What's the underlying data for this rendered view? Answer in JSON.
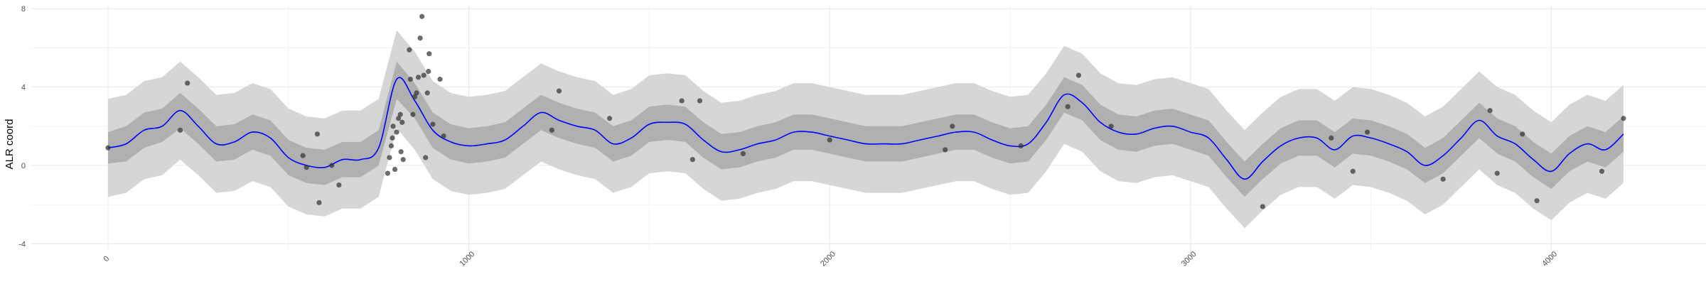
{
  "chart_data": {
    "type": "line",
    "title": "",
    "xlabel": "",
    "ylabel": "ALR coord",
    "xlim": [
      -100,
      4250
    ],
    "ylim": [
      -4.2,
      8
    ],
    "x_ticks": [
      0,
      1000,
      2000,
      3000,
      4000
    ],
    "x_tick_labels": [
      "0",
      "1000",
      "2000",
      "3000",
      "4000"
    ],
    "y_ticks": [
      -4,
      0,
      4,
      8
    ],
    "y_tick_labels": [
      "-4",
      "0",
      "4",
      "8"
    ],
    "grid": true,
    "legend": "none",
    "colors": {
      "mean": "#0000ff",
      "inner_band": "#b0b0b0",
      "outer_band": "#d6d6d6",
      "points": "#333333",
      "grid_major": "#e8e8e8",
      "grid_minor": "#f3f3f3"
    },
    "series": [
      {
        "type": "line",
        "x": [
          0,
          50,
          100,
          150,
          200,
          250,
          300,
          350,
          400,
          450,
          500,
          550,
          600,
          650,
          700,
          750,
          800,
          850,
          900,
          950,
          1000,
          1050,
          1100,
          1150,
          1200,
          1250,
          1300,
          1350,
          1400,
          1450,
          1500,
          1550,
          1600,
          1650,
          1700,
          1750,
          1800,
          1850,
          1900,
          1950,
          2000,
          2050,
          2100,
          2150,
          2200,
          2250,
          2300,
          2350,
          2400,
          2450,
          2500,
          2550,
          2600,
          2650,
          2700,
          2750,
          2800,
          2850,
          2900,
          2950,
          3000,
          3050,
          3100,
          3150,
          3200,
          3250,
          3300,
          3350,
          3400,
          3450,
          3500,
          3550,
          3600,
          3650,
          3700,
          3750,
          3800,
          3850,
          3900,
          3950,
          4000,
          4050,
          4100,
          4150,
          4200
        ],
        "y": [
          0.9,
          1.1,
          1.8,
          2.0,
          2.8,
          2.0,
          1.1,
          1.2,
          1.7,
          1.4,
          0.4,
          0.0,
          -0.1,
          0.3,
          0.3,
          0.9,
          4.4,
          3.3,
          1.8,
          1.2,
          1.0,
          1.1,
          1.3,
          2.0,
          2.7,
          2.3,
          2.0,
          1.8,
          1.1,
          1.4,
          2.1,
          2.2,
          2.1,
          1.3,
          0.7,
          0.8,
          1.1,
          1.3,
          1.7,
          1.7,
          1.5,
          1.3,
          1.1,
          1.1,
          1.1,
          1.3,
          1.5,
          1.7,
          1.7,
          1.3,
          1.0,
          1.1,
          2.2,
          3.6,
          3.2,
          2.2,
          1.7,
          1.6,
          1.9,
          2.0,
          1.7,
          1.4,
          0.3,
          -0.7,
          0.2,
          1.0,
          1.4,
          1.4,
          0.8,
          1.5,
          1.4,
          1.1,
          0.7,
          0.0,
          0.5,
          1.4,
          2.3,
          1.5,
          1.1,
          0.3,
          -0.3,
          0.6,
          1.1,
          0.8,
          1.6
        ]
      },
      {
        "type": "band",
        "level": "inner",
        "x": [
          0,
          50,
          100,
          150,
          200,
          250,
          300,
          350,
          400,
          450,
          500,
          550,
          600,
          650,
          700,
          750,
          800,
          850,
          900,
          950,
          1000,
          1050,
          1100,
          1150,
          1200,
          1250,
          1300,
          1350,
          1400,
          1450,
          1500,
          1550,
          1600,
          1650,
          1700,
          1750,
          1800,
          1850,
          1900,
          1950,
          2000,
          2050,
          2100,
          2150,
          2200,
          2250,
          2300,
          2350,
          2400,
          2450,
          2500,
          2550,
          2600,
          2650,
          2700,
          2750,
          2800,
          2850,
          2900,
          2950,
          3000,
          3050,
          3100,
          3150,
          3200,
          3250,
          3300,
          3350,
          3400,
          3450,
          3500,
          3550,
          3600,
          3650,
          3700,
          3750,
          3800,
          3850,
          3900,
          3950,
          4000,
          4050,
          4100,
          4150,
          4200
        ],
        "lower": [
          0.1,
          0.2,
          0.9,
          1.2,
          1.9,
          1.1,
          0.2,
          0.3,
          0.8,
          0.5,
          -0.5,
          -0.9,
          -1.0,
          -0.6,
          -0.6,
          0.0,
          3.4,
          2.4,
          0.9,
          0.3,
          0.1,
          0.2,
          0.4,
          1.1,
          1.8,
          1.4,
          1.1,
          0.9,
          0.2,
          0.5,
          1.2,
          1.3,
          1.2,
          0.4,
          -0.2,
          -0.1,
          0.2,
          0.4,
          0.8,
          0.8,
          0.6,
          0.4,
          0.2,
          0.2,
          0.2,
          0.4,
          0.6,
          0.8,
          0.8,
          0.4,
          0.1,
          0.2,
          1.3,
          2.7,
          2.3,
          1.3,
          0.8,
          0.7,
          1.0,
          1.1,
          0.8,
          0.5,
          -0.6,
          -1.6,
          -0.7,
          0.1,
          0.5,
          0.5,
          -0.1,
          0.6,
          0.5,
          0.2,
          -0.2,
          -0.9,
          -0.4,
          0.5,
          1.4,
          0.6,
          0.2,
          -0.6,
          -1.2,
          -0.3,
          0.2,
          -0.1,
          0.7
        ],
        "upper": [
          1.7,
          2.0,
          2.7,
          2.9,
          3.7,
          2.9,
          2.0,
          2.1,
          2.6,
          2.3,
          1.3,
          0.9,
          0.8,
          1.2,
          1.2,
          1.8,
          5.3,
          4.2,
          2.7,
          2.1,
          1.9,
          2.0,
          2.2,
          2.9,
          3.6,
          3.2,
          2.9,
          2.7,
          2.0,
          2.3,
          3.0,
          3.1,
          3.0,
          2.2,
          1.6,
          1.7,
          2.0,
          2.2,
          2.6,
          2.6,
          2.4,
          2.2,
          2.0,
          2.0,
          2.0,
          2.2,
          2.4,
          2.6,
          2.6,
          2.2,
          1.9,
          2.0,
          3.1,
          4.5,
          4.1,
          3.1,
          2.6,
          2.5,
          2.8,
          2.9,
          2.6,
          2.3,
          1.2,
          0.2,
          1.1,
          1.9,
          2.3,
          2.3,
          1.7,
          2.4,
          2.3,
          2.0,
          1.6,
          0.9,
          1.4,
          2.3,
          3.2,
          2.4,
          2.0,
          1.2,
          0.6,
          1.5,
          2.0,
          1.7,
          2.5
        ]
      },
      {
        "type": "band",
        "level": "outer",
        "x": [
          0,
          50,
          100,
          150,
          200,
          250,
          300,
          350,
          400,
          450,
          500,
          550,
          600,
          650,
          700,
          750,
          800,
          850,
          900,
          950,
          1000,
          1050,
          1100,
          1150,
          1200,
          1250,
          1300,
          1350,
          1400,
          1450,
          1500,
          1550,
          1600,
          1650,
          1700,
          1750,
          1800,
          1850,
          1900,
          1950,
          2000,
          2050,
          2100,
          2150,
          2200,
          2250,
          2300,
          2350,
          2400,
          2450,
          2500,
          2550,
          2600,
          2650,
          2700,
          2750,
          2800,
          2850,
          2900,
          2950,
          3000,
          3050,
          3100,
          3150,
          3200,
          3250,
          3300,
          3350,
          3400,
          3450,
          3500,
          3550,
          3600,
          3650,
          3700,
          3750,
          3800,
          3850,
          3900,
          3950,
          4000,
          4050,
          4100,
          4150,
          4200
        ],
        "lower": [
          -1.6,
          -1.4,
          -0.7,
          -0.5,
          0.3,
          -0.5,
          -1.4,
          -1.3,
          -0.8,
          -1.1,
          -2.1,
          -2.5,
          -2.6,
          -2.2,
          -2.2,
          -1.6,
          1.9,
          0.8,
          -0.7,
          -1.3,
          -1.5,
          -1.4,
          -1.2,
          -0.5,
          0.2,
          -0.2,
          -0.5,
          -0.7,
          -1.4,
          -1.1,
          -0.4,
          -0.3,
          -0.4,
          -1.2,
          -1.8,
          -1.7,
          -1.4,
          -1.2,
          -0.8,
          -0.8,
          -1.0,
          -1.2,
          -1.4,
          -1.4,
          -1.4,
          -1.2,
          -1.0,
          -0.8,
          -0.8,
          -1.2,
          -1.5,
          -1.4,
          -0.3,
          1.1,
          0.7,
          -0.3,
          -0.8,
          -0.9,
          -0.6,
          -0.5,
          -0.8,
          -1.1,
          -2.2,
          -3.2,
          -2.3,
          -1.5,
          -1.1,
          -1.1,
          -1.7,
          -1.0,
          -1.1,
          -1.4,
          -1.8,
          -2.5,
          -2.0,
          -1.1,
          -0.2,
          -1.0,
          -1.4,
          -2.2,
          -2.8,
          -1.9,
          -1.4,
          -1.7,
          -0.9
        ],
        "upper": [
          3.4,
          3.6,
          4.3,
          4.5,
          5.3,
          4.5,
          3.6,
          3.7,
          4.2,
          3.9,
          2.9,
          2.5,
          2.4,
          2.8,
          2.8,
          3.4,
          6.9,
          5.8,
          4.3,
          3.7,
          3.5,
          3.6,
          3.8,
          4.5,
          5.2,
          4.8,
          4.5,
          4.3,
          3.6,
          3.9,
          4.6,
          4.7,
          4.6,
          3.8,
          3.2,
          3.3,
          3.6,
          3.8,
          4.2,
          4.2,
          4.0,
          3.8,
          3.6,
          3.6,
          3.6,
          3.8,
          4.0,
          4.2,
          4.2,
          3.8,
          3.5,
          3.6,
          4.7,
          6.1,
          5.7,
          4.7,
          4.2,
          4.1,
          4.4,
          4.5,
          4.2,
          3.9,
          2.8,
          1.8,
          2.7,
          3.5,
          3.9,
          3.9,
          3.3,
          4.0,
          3.9,
          3.6,
          3.2,
          2.5,
          3.0,
          3.9,
          4.8,
          4.0,
          3.6,
          2.8,
          2.2,
          3.1,
          3.6,
          3.3,
          4.1
        ]
      },
      {
        "type": "scatter",
        "points": [
          {
            "x": 0,
            "y": 0.9
          },
          {
            "x": 200,
            "y": 1.8
          },
          {
            "x": 220,
            "y": 4.2
          },
          {
            "x": 540,
            "y": 0.5
          },
          {
            "x": 550,
            "y": -0.1
          },
          {
            "x": 580,
            "y": 1.6
          },
          {
            "x": 585,
            "y": -1.9
          },
          {
            "x": 620,
            "y": 0.0
          },
          {
            "x": 640,
            "y": -1.0
          },
          {
            "x": 775,
            "y": -0.4
          },
          {
            "x": 780,
            "y": 0.4
          },
          {
            "x": 785,
            "y": 1.0
          },
          {
            "x": 788,
            "y": 1.4
          },
          {
            "x": 790,
            "y": 2.0
          },
          {
            "x": 795,
            "y": -0.2
          },
          {
            "x": 800,
            "y": 1.7
          },
          {
            "x": 805,
            "y": 2.4
          },
          {
            "x": 810,
            "y": 2.6
          },
          {
            "x": 812,
            "y": 0.7
          },
          {
            "x": 815,
            "y": 2.2
          },
          {
            "x": 818,
            "y": 0.3
          },
          {
            "x": 835,
            "y": 5.9
          },
          {
            "x": 838,
            "y": 4.4
          },
          {
            "x": 845,
            "y": 2.6
          },
          {
            "x": 850,
            "y": 3.5
          },
          {
            "x": 855,
            "y": 3.7
          },
          {
            "x": 860,
            "y": 4.5
          },
          {
            "x": 865,
            "y": 6.5
          },
          {
            "x": 870,
            "y": 7.6
          },
          {
            "x": 875,
            "y": 4.6
          },
          {
            "x": 880,
            "y": 0.4
          },
          {
            "x": 885,
            "y": 3.7
          },
          {
            "x": 888,
            "y": 4.8
          },
          {
            "x": 890,
            "y": 5.7
          },
          {
            "x": 900,
            "y": 2.1
          },
          {
            "x": 920,
            "y": 4.4
          },
          {
            "x": 930,
            "y": 1.5
          },
          {
            "x": 1230,
            "y": 1.8
          },
          {
            "x": 1250,
            "y": 3.8
          },
          {
            "x": 1390,
            "y": 2.4
          },
          {
            "x": 1590,
            "y": 3.3
          },
          {
            "x": 1620,
            "y": 0.3
          },
          {
            "x": 1640,
            "y": 3.3
          },
          {
            "x": 1760,
            "y": 0.6
          },
          {
            "x": 2000,
            "y": 1.3
          },
          {
            "x": 2320,
            "y": 0.8
          },
          {
            "x": 2340,
            "y": 2.0
          },
          {
            "x": 2530,
            "y": 1.0
          },
          {
            "x": 2660,
            "y": 3.0
          },
          {
            "x": 2690,
            "y": 4.6
          },
          {
            "x": 2780,
            "y": 2.0
          },
          {
            "x": 3200,
            "y": -2.1
          },
          {
            "x": 3390,
            "y": 1.4
          },
          {
            "x": 3450,
            "y": -0.3
          },
          {
            "x": 3490,
            "y": 1.7
          },
          {
            "x": 3700,
            "y": -0.7
          },
          {
            "x": 3830,
            "y": 2.8
          },
          {
            "x": 3850,
            "y": -0.4
          },
          {
            "x": 3920,
            "y": 1.6
          },
          {
            "x": 3960,
            "y": -1.8
          },
          {
            "x": 4140,
            "y": -0.3
          },
          {
            "x": 4200,
            "y": 2.4
          }
        ]
      }
    ]
  }
}
